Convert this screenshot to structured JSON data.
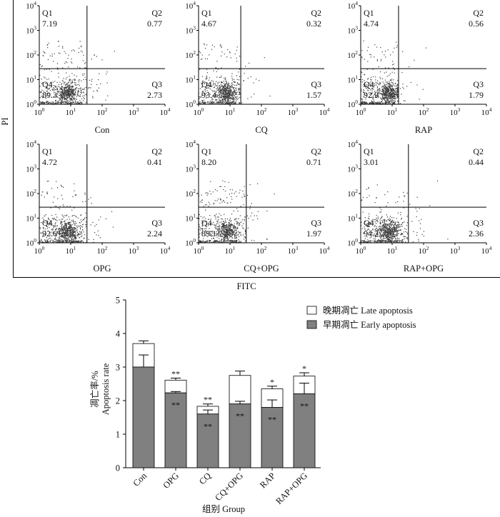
{
  "flow_figure": {
    "y_axis_label": "PI",
    "x_axis_label": "FITC"
  },
  "chart_data": [
    {
      "type": "scatter",
      "title": "Con",
      "x_scale": "log",
      "y_scale": "log",
      "xlim": [
        1,
        10000
      ],
      "ylim": [
        1,
        10000
      ],
      "tick_base": "10",
      "tick_exponents": [
        "0",
        "1",
        "2",
        "3",
        "4"
      ],
      "gate": {
        "fitc": 33,
        "pi": 28
      },
      "quadrant_labels": [
        "Q1",
        "Q2",
        "Q3",
        "Q4"
      ],
      "quadrant_values": [
        "7.19",
        "0.77",
        "2.73",
        "89.3"
      ]
    },
    {
      "type": "scatter",
      "title": "CQ",
      "x_scale": "log",
      "y_scale": "log",
      "xlim": [
        1,
        10000
      ],
      "ylim": [
        1,
        10000
      ],
      "tick_base": "10",
      "tick_exponents": [
        "0",
        "1",
        "2",
        "3",
        "4"
      ],
      "gate": {
        "fitc": 22,
        "pi": 28
      },
      "quadrant_labels": [
        "Q1",
        "Q2",
        "Q3",
        "Q4"
      ],
      "quadrant_values": [
        "4.67",
        "0.32",
        "1.57",
        "93.4"
      ]
    },
    {
      "type": "scatter",
      "title": "RAP",
      "x_scale": "log",
      "y_scale": "log",
      "xlim": [
        1,
        10000
      ],
      "ylim": [
        1,
        10000
      ],
      "tick_base": "10",
      "tick_exponents": [
        "0",
        "1",
        "2",
        "3",
        "4"
      ],
      "gate": {
        "fitc": 16,
        "pi": 28
      },
      "quadrant_labels": [
        "Q1",
        "Q2",
        "Q3",
        "Q4"
      ],
      "quadrant_values": [
        "4.74",
        "0.56",
        "1.79",
        "92.9"
      ]
    },
    {
      "type": "scatter",
      "title": "OPG",
      "x_scale": "log",
      "y_scale": "log",
      "xlim": [
        1,
        10000
      ],
      "ylim": [
        1,
        10000
      ],
      "tick_base": "10",
      "tick_exponents": [
        "0",
        "1",
        "2",
        "3",
        "4"
      ],
      "gate": {
        "fitc": 33,
        "pi": 28
      },
      "quadrant_labels": [
        "Q1",
        "Q2",
        "Q3",
        "Q4"
      ],
      "quadrant_values": [
        "4.72",
        "0.41",
        "2.24",
        "92.6"
      ]
    },
    {
      "type": "scatter",
      "title": "CQ+OPG",
      "x_scale": "log",
      "y_scale": "log",
      "xlim": [
        1,
        10000
      ],
      "ylim": [
        1,
        10000
      ],
      "tick_base": "10",
      "tick_exponents": [
        "0",
        "1",
        "2",
        "3",
        "4"
      ],
      "gate": {
        "fitc": 33,
        "pi": 28
      },
      "quadrant_labels": [
        "Q1",
        "Q2",
        "Q3",
        "Q4"
      ],
      "quadrant_values": [
        "8.20",
        "0.71",
        "1.97",
        "89.1"
      ]
    },
    {
      "type": "scatter",
      "title": "RAP+OPG",
      "x_scale": "log",
      "y_scale": "log",
      "xlim": [
        1,
        10000
      ],
      "ylim": [
        1,
        10000
      ],
      "tick_base": "10",
      "tick_exponents": [
        "0",
        "1",
        "2",
        "3",
        "4"
      ],
      "gate": {
        "fitc": 33,
        "pi": 28
      },
      "quadrant_labels": [
        "Q1",
        "Q2",
        "Q3",
        "Q4"
      ],
      "quadrant_values": [
        "3.01",
        "0.44",
        "2.36",
        "94.2"
      ]
    },
    {
      "type": "bar",
      "stacked": true,
      "categories": [
        "Con",
        "OPG",
        "CQ",
        "CQ+OPG",
        "RAP",
        "RAP+OPG"
      ],
      "series": [
        {
          "name": "早期凋亡 Early apoptosis",
          "values": [
            3.0,
            2.23,
            1.6,
            1.9,
            1.8,
            2.2
          ],
          "errors": [
            0.36,
            0.04,
            0.12,
            0.08,
            0.22,
            0.32
          ],
          "color": "#808080"
        },
        {
          "name": "晚期凋亡 Late apoptosis",
          "values": [
            0.7,
            0.38,
            0.23,
            0.85,
            0.55,
            0.53
          ],
          "errors": [
            0.08,
            0.06,
            0.07,
            0.13,
            0.08,
            0.1
          ],
          "color": "#ffffff"
        }
      ],
      "significance_total": [
        "",
        "**",
        "**",
        "",
        "*",
        "*"
      ],
      "significance_early": [
        "",
        "**",
        "**",
        "**",
        "**",
        "**"
      ],
      "ylabel": "凋亡率/%",
      "ylabel_en": "Apoptosis rate",
      "xlabel": "组别 Group",
      "ylim": [
        0,
        5
      ],
      "yticks": [
        "0",
        "1",
        "2",
        "3",
        "4",
        "5"
      ],
      "grid": false,
      "legend": "top-right"
    }
  ]
}
